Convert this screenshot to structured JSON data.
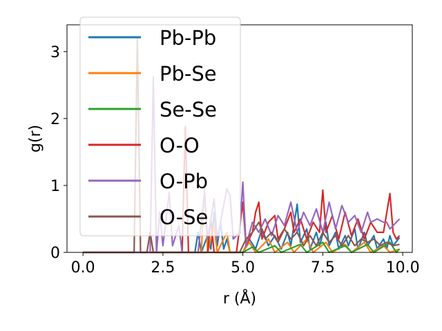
{
  "chart_data": {
    "type": "line",
    "title": "",
    "xlabel": "r (Å)",
    "ylabel": "g(r)",
    "xlim": [
      -0.5,
      10.3
    ],
    "ylim": [
      0,
      3.4
    ],
    "xticks": [
      "0.0",
      "2.5",
      "5.0",
      "7.5",
      "10.0"
    ],
    "xtick_values": [
      0,
      2.5,
      5,
      7.5,
      10
    ],
    "yticks": [
      "0",
      "1",
      "2",
      "3"
    ],
    "ytick_values": [
      0,
      1,
      2,
      3
    ],
    "grid": false,
    "legend_position": "upper-left",
    "series": [
      {
        "name": "Pb-Pb",
        "color": "#1f77b4",
        "points": [
          [
            0,
            0
          ],
          [
            3.5,
            0
          ],
          [
            3.6,
            0.3
          ],
          [
            3.7,
            0
          ],
          [
            3.9,
            0.25
          ],
          [
            4.0,
            0.05
          ],
          [
            4.1,
            0.6
          ],
          [
            4.2,
            0.1
          ],
          [
            4.3,
            0.45
          ],
          [
            4.4,
            0.05
          ],
          [
            4.5,
            0.2
          ],
          [
            4.6,
            0
          ],
          [
            5.0,
            0
          ],
          [
            5.2,
            0.2
          ],
          [
            5.4,
            0.05
          ],
          [
            5.6,
            0.35
          ],
          [
            5.8,
            0.1
          ],
          [
            6.0,
            0.25
          ],
          [
            6.2,
            0.05
          ],
          [
            6.4,
            0.3
          ],
          [
            6.5,
            0.1
          ],
          [
            6.7,
            0.72
          ],
          [
            6.8,
            0.15
          ],
          [
            7.0,
            0.35
          ],
          [
            7.1,
            0.05
          ],
          [
            7.3,
            0.3
          ],
          [
            7.4,
            0.1
          ],
          [
            7.6,
            0.45
          ],
          [
            7.7,
            0.1
          ],
          [
            7.9,
            0.3
          ],
          [
            8.0,
            0.05
          ],
          [
            8.2,
            0.25
          ],
          [
            8.3,
            0.1
          ],
          [
            8.5,
            0.35
          ],
          [
            8.6,
            0.05
          ],
          [
            8.8,
            0.3
          ],
          [
            8.9,
            0.1
          ],
          [
            9.1,
            0.25
          ],
          [
            9.2,
            0.05
          ],
          [
            9.4,
            0.2
          ],
          [
            9.5,
            0.05
          ],
          [
            9.6,
            0.25
          ],
          [
            9.7,
            0.1
          ],
          [
            9.9,
            0.22
          ]
        ]
      },
      {
        "name": "Pb-Se",
        "color": "#ff7f0e",
        "points": [
          [
            0,
            0
          ],
          [
            3.7,
            0
          ],
          [
            3.8,
            0.95
          ],
          [
            3.9,
            0
          ],
          [
            4.1,
            0.4
          ],
          [
            4.2,
            0
          ],
          [
            4.5,
            0.3
          ],
          [
            4.6,
            0
          ],
          [
            5.0,
            0
          ],
          [
            5.2,
            0.15
          ],
          [
            5.4,
            0
          ],
          [
            5.8,
            0.2
          ],
          [
            6.0,
            0
          ],
          [
            6.4,
            0.15
          ],
          [
            6.6,
            0
          ],
          [
            7.0,
            0.2
          ],
          [
            7.2,
            0
          ],
          [
            7.6,
            0.15
          ],
          [
            7.8,
            0
          ],
          [
            8.2,
            0.12
          ],
          [
            8.4,
            0
          ],
          [
            8.8,
            0.15
          ],
          [
            9.0,
            0
          ],
          [
            9.4,
            0.1
          ],
          [
            9.6,
            0
          ],
          [
            9.9,
            0.05
          ]
        ]
      },
      {
        "name": "Se-Se",
        "color": "#2ca02c",
        "points": [
          [
            0,
            0
          ],
          [
            5.0,
            0
          ],
          [
            5.3,
            0.08
          ],
          [
            5.5,
            0
          ],
          [
            6.0,
            0.1
          ],
          [
            6.2,
            0
          ],
          [
            6.8,
            0.12
          ],
          [
            7.0,
            0
          ],
          [
            7.5,
            0.15
          ],
          [
            7.7,
            0
          ],
          [
            8.2,
            0.1
          ],
          [
            8.4,
            0
          ],
          [
            8.9,
            0.12
          ],
          [
            9.1,
            0
          ],
          [
            9.6,
            0.15
          ],
          [
            9.8,
            0
          ],
          [
            9.9,
            0.05
          ]
        ]
      },
      {
        "name": "O-O",
        "color": "#d62728",
        "points": [
          [
            0,
            0
          ],
          [
            3.1,
            0
          ],
          [
            3.2,
            1.88
          ],
          [
            3.3,
            0
          ],
          [
            3.9,
            0
          ],
          [
            4.0,
            0.5
          ],
          [
            4.1,
            0
          ],
          [
            4.8,
            0
          ],
          [
            5.0,
            0.75
          ],
          [
            5.1,
            0.1
          ],
          [
            5.3,
            0.3
          ],
          [
            5.4,
            0.6
          ],
          [
            5.5,
            0.75
          ],
          [
            5.6,
            0.2
          ],
          [
            5.8,
            0.45
          ],
          [
            6.0,
            0.55
          ],
          [
            6.1,
            0.2
          ],
          [
            6.3,
            0.35
          ],
          [
            6.5,
            0.6
          ],
          [
            6.6,
            0.3
          ],
          [
            6.8,
            0.5
          ],
          [
            7.0,
            0.2
          ],
          [
            7.2,
            0.45
          ],
          [
            7.4,
            0.3
          ],
          [
            7.5,
            0.93
          ],
          [
            7.6,
            0.3
          ],
          [
            7.8,
            0.55
          ],
          [
            8.0,
            0.2
          ],
          [
            8.2,
            0.6
          ],
          [
            8.4,
            0.25
          ],
          [
            8.6,
            0.5
          ],
          [
            8.8,
            0.2
          ],
          [
            9.0,
            0.45
          ],
          [
            9.2,
            0.3
          ],
          [
            9.4,
            0.3
          ],
          [
            9.6,
            0.88
          ],
          [
            9.7,
            0.3
          ],
          [
            9.8,
            0.2
          ],
          [
            9.9,
            0.25
          ]
        ]
      },
      {
        "name": "O-Pb",
        "color": "#9467bd",
        "points": [
          [
            0,
            0
          ],
          [
            2.1,
            0
          ],
          [
            2.2,
            2.62
          ],
          [
            2.3,
            0
          ],
          [
            2.4,
            0.6
          ],
          [
            2.5,
            0.1
          ],
          [
            2.7,
            0.9
          ],
          [
            2.8,
            0.1
          ],
          [
            3.0,
            0.4
          ],
          [
            3.1,
            0
          ],
          [
            3.6,
            0
          ],
          [
            3.8,
            0.9
          ],
          [
            3.9,
            0.2
          ],
          [
            4.1,
            0.8
          ],
          [
            4.2,
            0.2
          ],
          [
            4.5,
            0.95
          ],
          [
            4.6,
            0.85
          ],
          [
            4.7,
            0.2
          ],
          [
            4.9,
            0.3
          ],
          [
            5.0,
            1.05
          ],
          [
            5.1,
            0.1
          ],
          [
            5.3,
            0.45
          ],
          [
            5.5,
            0.3
          ],
          [
            5.7,
            0.5
          ],
          [
            5.9,
            0.25
          ],
          [
            6.1,
            0.55
          ],
          [
            6.3,
            0.4
          ],
          [
            6.5,
            0.75
          ],
          [
            6.7,
            0.3
          ],
          [
            6.9,
            0.6
          ],
          [
            7.1,
            0.4
          ],
          [
            7.3,
            0.65
          ],
          [
            7.5,
            0.3
          ],
          [
            7.7,
            0.75
          ],
          [
            7.9,
            0.35
          ],
          [
            8.1,
            0.7
          ],
          [
            8.3,
            0.45
          ],
          [
            8.5,
            0.55
          ],
          [
            8.7,
            0.3
          ],
          [
            8.9,
            0.6
          ],
          [
            9.0,
            0.45
          ],
          [
            9.2,
            0.5
          ],
          [
            9.4,
            0.45
          ],
          [
            9.5,
            0.45
          ],
          [
            9.6,
            0.35
          ],
          [
            9.8,
            0.45
          ],
          [
            9.9,
            0.5
          ]
        ]
      },
      {
        "name": "O-Se",
        "color": "#8c564b",
        "points": [
          [
            0,
            0
          ],
          [
            1.6,
            0
          ],
          [
            1.7,
            3.2
          ],
          [
            1.8,
            0
          ],
          [
            2.0,
            0
          ],
          [
            2.1,
            0.3
          ],
          [
            2.2,
            0
          ],
          [
            4.9,
            0
          ],
          [
            5.1,
            0.2
          ],
          [
            5.3,
            0.3
          ],
          [
            5.5,
            0.45
          ],
          [
            5.7,
            0.2
          ],
          [
            5.9,
            0.3
          ],
          [
            6.1,
            0.15
          ],
          [
            6.3,
            0.35
          ],
          [
            6.5,
            0.2
          ],
          [
            6.7,
            0.3
          ],
          [
            6.9,
            0.1
          ],
          [
            7.1,
            0.25
          ],
          [
            7.3,
            0.1
          ],
          [
            7.5,
            0.3
          ],
          [
            7.7,
            0.15
          ],
          [
            7.9,
            0.25
          ],
          [
            8.1,
            0.1
          ],
          [
            8.3,
            0.25
          ],
          [
            8.5,
            0.1
          ],
          [
            8.7,
            0.2
          ],
          [
            8.9,
            0.15
          ],
          [
            9.1,
            0.2
          ],
          [
            9.3,
            0.1
          ],
          [
            9.5,
            0.15
          ],
          [
            9.7,
            0.1
          ],
          [
            9.9,
            0.12
          ]
        ]
      }
    ]
  }
}
